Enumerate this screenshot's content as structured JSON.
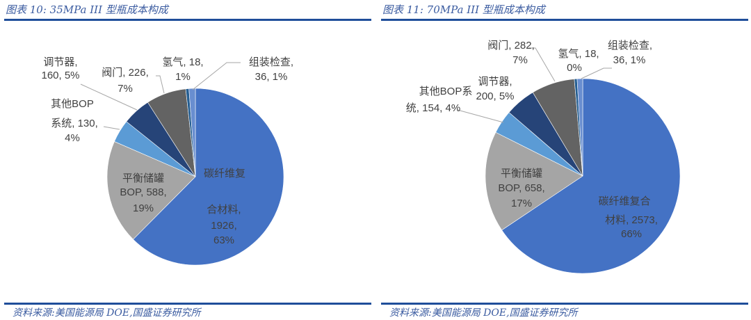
{
  "chart_data": [
    {
      "type": "pie",
      "title": "图表 10:  35MPa III 型瓶成本构成",
      "source": "资料来源:美国能源局 DOE,国盛证券研究所",
      "slices": [
        {
          "name": "碳纤维复合材料",
          "value": 1926,
          "pct": "63%",
          "color": "#4472C4",
          "label_lines": [
            "碳纤维复",
            "合材料,",
            "1926,",
            "63%"
          ]
        },
        {
          "name": "平衡储罐BOP",
          "value": 588,
          "pct": "19%",
          "color": "#A5A5A5",
          "label_lines": [
            "平衡储罐",
            "BOP, 588,",
            "19%"
          ]
        },
        {
          "name": "其他BOP系统",
          "value": 130,
          "pct": "4%",
          "color": "#5B9BD5",
          "label_lines": [
            "其他BOP",
            "系统, 130,",
            "4%"
          ]
        },
        {
          "name": "调节器",
          "value": 160,
          "pct": "5%",
          "color": "#264478",
          "label_lines": [
            "调节器,",
            "160, 5%"
          ]
        },
        {
          "name": "阀门",
          "value": 226,
          "pct": "7%",
          "color": "#636363",
          "label_lines": [
            "阀门, 226,",
            "7%"
          ]
        },
        {
          "name": "氢气",
          "value": 18,
          "pct": "1%",
          "color": "#255E91",
          "label_lines": [
            "氢气, 18,",
            "1%"
          ]
        },
        {
          "name": "组装检查",
          "value": 36,
          "pct": "1%",
          "color": "#698ED0",
          "label_lines": [
            "组装检查,",
            "36, 1%"
          ]
        }
      ]
    },
    {
      "type": "pie",
      "title": "图表 11:  70MPa III 型瓶成本构成",
      "source": "资料来源:美国能源局 DOE,国盛证券研究所",
      "slices": [
        {
          "name": "碳纤维复合材料",
          "value": 2573,
          "pct": "66%",
          "color": "#4472C4",
          "label_lines": [
            "碳纤维复合",
            "材料, 2573,",
            "66%"
          ]
        },
        {
          "name": "平衡储罐BOP",
          "value": 658,
          "pct": "17%",
          "color": "#A5A5A5",
          "label_lines": [
            "平衡储罐",
            "BOP, 658,",
            "17%"
          ]
        },
        {
          "name": "其他BOP系统",
          "value": 154,
          "pct": "4%",
          "color": "#5B9BD5",
          "label_lines": [
            "其他BOP系",
            "统, 154, 4%"
          ]
        },
        {
          "name": "调节器",
          "value": 200,
          "pct": "5%",
          "color": "#264478",
          "label_lines": [
            "调节器,",
            "200, 5%"
          ]
        },
        {
          "name": "阀门",
          "value": 282,
          "pct": "7%",
          "color": "#636363",
          "label_lines": [
            "阀门, 282,",
            "7%"
          ]
        },
        {
          "name": "氢气",
          "value": 18,
          "pct": "0%",
          "color": "#255E91",
          "label_lines": [
            "氢气, 18,",
            "0%"
          ]
        },
        {
          "name": "组装检查",
          "value": 36,
          "pct": "1%",
          "color": "#698ED0",
          "label_lines": [
            "组装检查,",
            "36, 1%"
          ]
        }
      ]
    }
  ]
}
